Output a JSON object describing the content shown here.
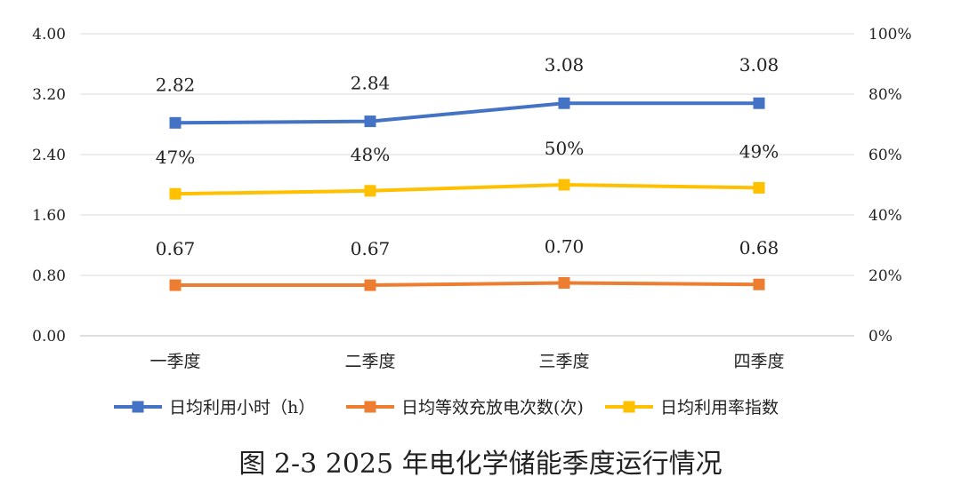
{
  "chart_data": {
    "type": "line",
    "categories": [
      "一季度",
      "二季度",
      "三季度",
      "四季度"
    ],
    "y_left": {
      "ticks": [
        "0.00",
        "0.80",
        "1.60",
        "2.40",
        "3.20",
        "4.00"
      ],
      "range": [
        0,
        4
      ]
    },
    "y_right": {
      "ticks": [
        "0%",
        "20%",
        "40%",
        "60%",
        "80%",
        "100%"
      ],
      "range": [
        0,
        100
      ]
    },
    "series": [
      {
        "name": "日均利用小时（h）",
        "axis": "left",
        "color": "#4472C4",
        "values": [
          2.82,
          2.84,
          3.08,
          3.08
        ],
        "labels": [
          "2.82",
          "2.84",
          "3.08",
          "3.08"
        ]
      },
      {
        "name": "日均等效充放电次数(次)",
        "axis": "left",
        "color": "#ED7D31",
        "values": [
          0.67,
          0.67,
          0.7,
          0.68
        ],
        "labels": [
          "0.67",
          "0.67",
          "0.70",
          "0.68"
        ]
      },
      {
        "name": "日均利用率指数",
        "axis": "right",
        "color": "#FFC000",
        "values": [
          47,
          48,
          50,
          49
        ],
        "labels": [
          "47%",
          "48%",
          "50%",
          "49%"
        ]
      }
    ],
    "legend_position": "bottom",
    "grid": true
  },
  "caption": "图 2-3 2025 年电化学储能季度运行情况"
}
